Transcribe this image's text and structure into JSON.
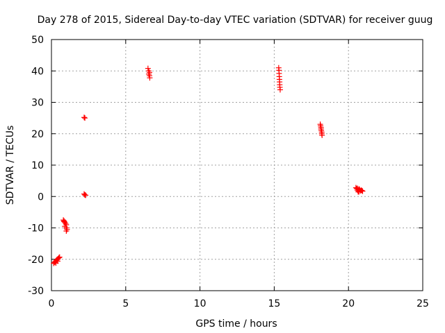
{
  "chart_data": {
    "type": "scatter",
    "title": "Day 278 of 2015, Sidereal Day-to-day VTEC variation (SDTVAR) for receiver guug",
    "xlabel": "GPS time / hours",
    "ylabel": "SDTVAR / TECUs",
    "xlim": [
      0,
      25
    ],
    "ylim": [
      -30,
      50
    ],
    "xticks": [
      "0",
      "5",
      "10",
      "15",
      "20",
      "25"
    ],
    "xtick_values": [
      0,
      5,
      10,
      15,
      20,
      25
    ],
    "yticks": [
      "-30",
      "-20",
      "-10",
      "0",
      "10",
      "20",
      "30",
      "40",
      "50"
    ],
    "ytick_values": [
      -30,
      -20,
      -10,
      0,
      10,
      20,
      30,
      40,
      50
    ],
    "grid": true,
    "marker": "plus",
    "series": [
      {
        "name": "SDTVAR",
        "color": "#ff0000",
        "points": [
          [
            0.15,
            -21.3
          ],
          [
            0.2,
            -21.0
          ],
          [
            0.25,
            -20.8
          ],
          [
            0.3,
            -20.5
          ],
          [
            0.35,
            -20.2
          ],
          [
            0.4,
            -20.0
          ],
          [
            0.45,
            -19.8
          ],
          [
            0.5,
            -19.5
          ],
          [
            0.55,
            -19.3
          ],
          [
            0.3,
            -21.2
          ],
          [
            0.42,
            -20.6
          ],
          [
            0.8,
            -7.5
          ],
          [
            0.85,
            -7.8
          ],
          [
            0.9,
            -8.2
          ],
          [
            0.95,
            -8.6
          ],
          [
            1.0,
            -9.0
          ],
          [
            0.9,
            -9.5
          ],
          [
            1.0,
            -10.0
          ],
          [
            1.05,
            -10.5
          ],
          [
            1.0,
            -11.0
          ],
          [
            0.85,
            -8.0
          ],
          [
            2.2,
            25.2
          ],
          [
            2.25,
            25.0
          ],
          [
            2.2,
            0.8
          ],
          [
            2.25,
            0.5
          ],
          [
            2.3,
            0.4
          ],
          [
            6.5,
            40.8
          ],
          [
            6.55,
            40.0
          ],
          [
            6.6,
            39.5
          ],
          [
            6.55,
            39.0
          ],
          [
            6.6,
            38.5
          ],
          [
            6.62,
            37.8
          ],
          [
            15.3,
            41.0
          ],
          [
            15.32,
            40.2
          ],
          [
            15.33,
            39.2
          ],
          [
            15.34,
            38.2
          ],
          [
            15.35,
            37.3
          ],
          [
            15.36,
            36.5
          ],
          [
            15.37,
            35.6
          ],
          [
            15.38,
            34.8
          ],
          [
            15.4,
            34.0
          ],
          [
            18.1,
            23.0
          ],
          [
            18.12,
            22.5
          ],
          [
            18.15,
            22.0
          ],
          [
            18.15,
            21.5
          ],
          [
            18.17,
            21.0
          ],
          [
            18.2,
            20.5
          ],
          [
            18.2,
            20.0
          ],
          [
            18.22,
            19.5
          ],
          [
            20.5,
            2.8
          ],
          [
            20.55,
            2.5
          ],
          [
            20.6,
            2.0
          ],
          [
            20.65,
            1.5
          ],
          [
            20.7,
            1.5
          ],
          [
            20.75,
            2.2
          ],
          [
            20.8,
            1.8
          ],
          [
            20.85,
            2.0
          ],
          [
            20.9,
            1.9
          ],
          [
            20.95,
            1.7
          ],
          [
            20.6,
            2.6
          ],
          [
            20.7,
            2.4
          ]
        ]
      }
    ]
  }
}
